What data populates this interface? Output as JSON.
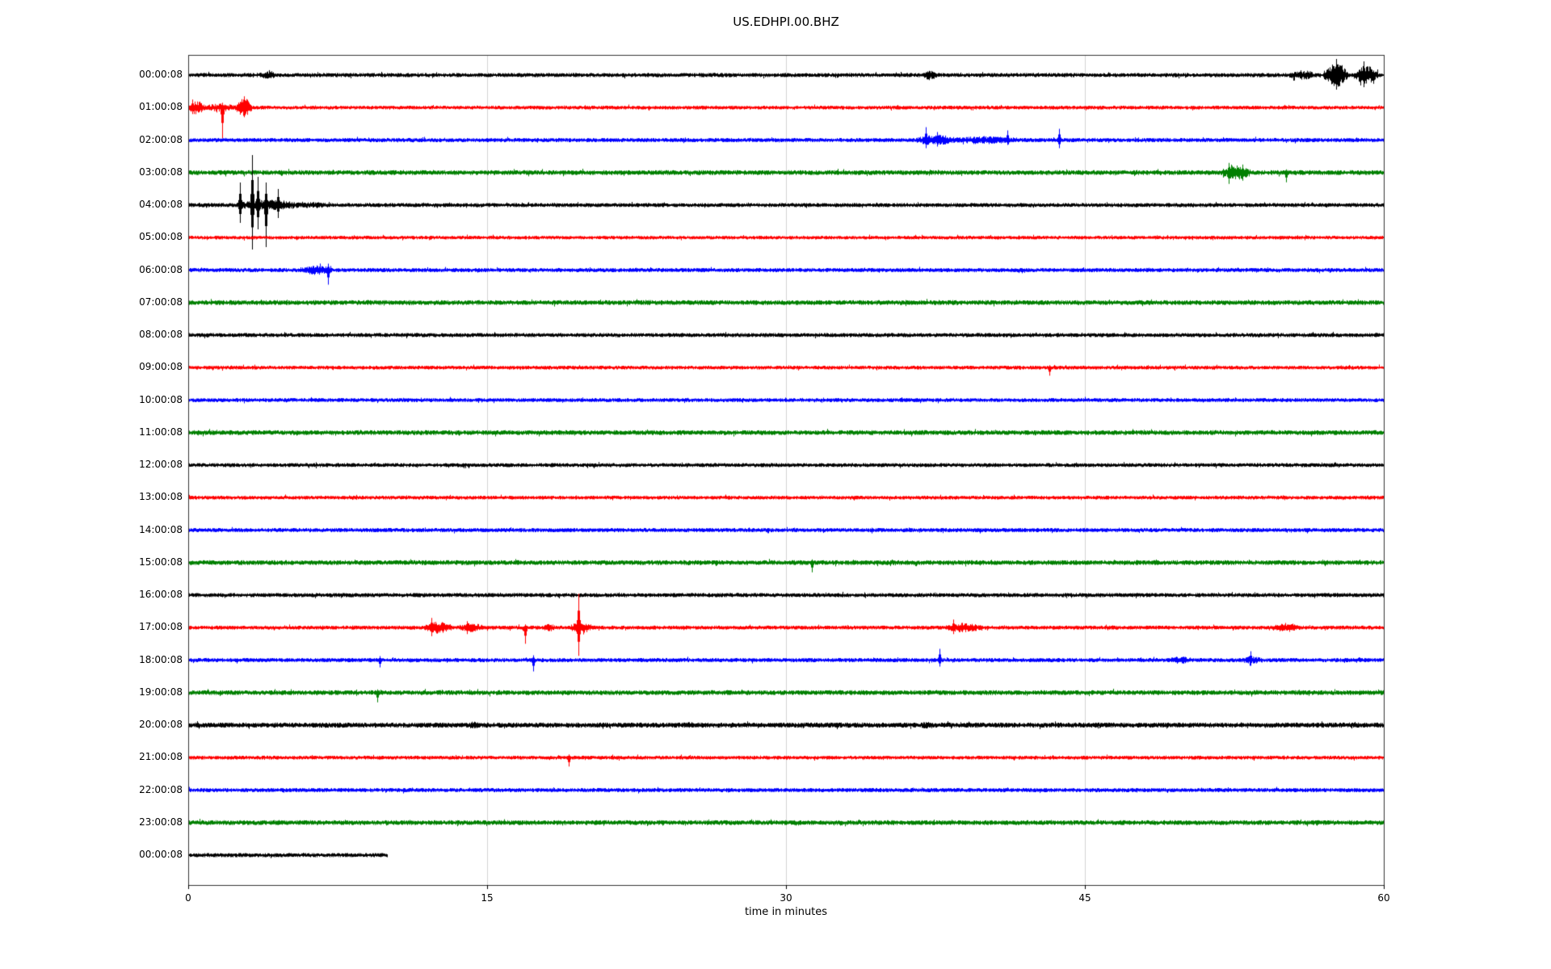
{
  "chart_data": {
    "type": "line",
    "subtype": "seismogram-dayplot",
    "title": "US.EDHPI.00.BHZ",
    "xlabel": "time in minutes",
    "xlim": [
      0,
      60
    ],
    "xticks": [
      0,
      15,
      30,
      45,
      60
    ],
    "grid_x": [
      15,
      30,
      45
    ],
    "grid_color": "#d3d3d3",
    "axis_color": "#333333",
    "trace_colors_cycle": [
      "#000000",
      "#ff0000",
      "#0000ff",
      "#008000"
    ],
    "rows": [
      {
        "label": "00:00:08",
        "color": "#000000",
        "noise": 2.6,
        "events": [
          {
            "type": "burst",
            "t0": 3.6,
            "t1": 4.4,
            "amp": 5
          },
          {
            "type": "burst",
            "t0": 36.8,
            "t1": 37.6,
            "amp": 6
          },
          {
            "type": "burst",
            "t0": 55.2,
            "t1": 56.6,
            "amp": 6
          },
          {
            "type": "burst",
            "t0": 57.0,
            "t1": 58.2,
            "amp": 15
          },
          {
            "type": "spike",
            "t": 57.6,
            "up": 20,
            "down": 18
          },
          {
            "type": "burst",
            "t0": 58.5,
            "t1": 59.7,
            "amp": 12
          },
          {
            "type": "spike",
            "t": 59.0,
            "up": 17,
            "down": 15
          }
        ]
      },
      {
        "label": "01:00:08",
        "color": "#ff0000",
        "noise": 2.4,
        "events": [
          {
            "type": "burst",
            "t0": 0.0,
            "t1": 0.8,
            "amp": 9
          },
          {
            "type": "spike",
            "t": 0.2,
            "up": 10,
            "down": 8
          },
          {
            "type": "burst",
            "t0": 0.8,
            "t1": 2.4,
            "amp": 5
          },
          {
            "type": "spike",
            "t": 1.7,
            "up": 6,
            "down": 38
          },
          {
            "type": "burst",
            "t0": 2.4,
            "t1": 3.2,
            "amp": 12
          },
          {
            "type": "spike",
            "t": 2.8,
            "up": 14,
            "down": 12
          }
        ]
      },
      {
        "label": "02:00:08",
        "color": "#0000ff",
        "noise": 2.6,
        "events": [
          {
            "type": "burst",
            "t0": 36.5,
            "t1": 38.5,
            "amp": 7
          },
          {
            "type": "spike",
            "t": 37.0,
            "up": 16,
            "down": 10
          },
          {
            "type": "spike",
            "t": 37.6,
            "up": 10,
            "down": 8
          },
          {
            "type": "burst",
            "t0": 38.5,
            "t1": 41.5,
            "amp": 5
          },
          {
            "type": "spike",
            "t": 41.1,
            "up": 12,
            "down": 6
          },
          {
            "type": "spike",
            "t": 43.7,
            "up": 14,
            "down": 10
          }
        ]
      },
      {
        "label": "03:00:08",
        "color": "#008000",
        "noise": 3.0,
        "events": [
          {
            "type": "burst",
            "t0": 51.9,
            "t1": 53.3,
            "amp": 9
          },
          {
            "type": "spike",
            "t": 52.2,
            "up": 12,
            "down": 14
          },
          {
            "type": "spike",
            "t": 52.9,
            "up": 10,
            "down": 10
          },
          {
            "type": "spike",
            "t": 55.1,
            "up": 4,
            "down": 12
          }
        ]
      },
      {
        "label": "04:00:08",
        "color": "#000000",
        "noise": 2.6,
        "events": [
          {
            "type": "burst",
            "t0": 2.4,
            "t1": 5.6,
            "amp": 7
          },
          {
            "type": "spike",
            "t": 2.6,
            "up": 28,
            "down": 22
          },
          {
            "type": "spike",
            "t": 3.2,
            "up": 62,
            "down": 55
          },
          {
            "type": "spike",
            "t": 3.5,
            "up": 35,
            "down": 30
          },
          {
            "type": "spike",
            "t": 3.9,
            "up": 28,
            "down": 52
          },
          {
            "type": "spike",
            "t": 4.5,
            "up": 20,
            "down": 16
          },
          {
            "type": "burst",
            "t0": 5.6,
            "t1": 7.0,
            "amp": 4
          }
        ]
      },
      {
        "label": "05:00:08",
        "color": "#ff0000",
        "noise": 2.3,
        "events": []
      },
      {
        "label": "06:00:08",
        "color": "#0000ff",
        "noise": 2.6,
        "events": [
          {
            "type": "burst",
            "t0": 5.6,
            "t1": 7.2,
            "amp": 6
          },
          {
            "type": "spike",
            "t": 7.0,
            "up": 8,
            "down": 18
          }
        ]
      },
      {
        "label": "07:00:08",
        "color": "#008000",
        "noise": 3.0,
        "events": []
      },
      {
        "label": "08:00:08",
        "color": "#000000",
        "noise": 2.6,
        "events": []
      },
      {
        "label": "09:00:08",
        "color": "#ff0000",
        "noise": 2.4,
        "events": [
          {
            "type": "spike",
            "t": 43.2,
            "up": 3,
            "down": 10
          }
        ]
      },
      {
        "label": "10:00:08",
        "color": "#0000ff",
        "noise": 2.5,
        "events": []
      },
      {
        "label": "11:00:08",
        "color": "#008000",
        "noise": 3.0,
        "events": []
      },
      {
        "label": "12:00:08",
        "color": "#000000",
        "noise": 2.5,
        "events": []
      },
      {
        "label": "13:00:08",
        "color": "#ff0000",
        "noise": 2.4,
        "events": []
      },
      {
        "label": "14:00:08",
        "color": "#0000ff",
        "noise": 2.6,
        "events": []
      },
      {
        "label": "15:00:08",
        "color": "#008000",
        "noise": 3.0,
        "events": [
          {
            "type": "spike",
            "t": 31.3,
            "up": 4,
            "down": 12
          }
        ]
      },
      {
        "label": "16:00:08",
        "color": "#000000",
        "noise": 2.6,
        "events": []
      },
      {
        "label": "17:00:08",
        "color": "#ff0000",
        "noise": 2.5,
        "events": [
          {
            "type": "burst",
            "t0": 11.8,
            "t1": 13.2,
            "amp": 8
          },
          {
            "type": "spike",
            "t": 12.2,
            "up": 12,
            "down": 10
          },
          {
            "type": "burst",
            "t0": 13.6,
            "t1": 14.8,
            "amp": 6
          },
          {
            "type": "spike",
            "t": 14.0,
            "up": 8,
            "down": 8
          },
          {
            "type": "spike",
            "t": 16.9,
            "up": 4,
            "down": 20
          },
          {
            "type": "burst",
            "t0": 17.8,
            "t1": 18.4,
            "amp": 5
          },
          {
            "type": "burst",
            "t0": 19.2,
            "t1": 20.2,
            "amp": 9
          },
          {
            "type": "spike",
            "t": 19.6,
            "up": 42,
            "down": 35
          },
          {
            "type": "burst",
            "t0": 38.0,
            "t1": 39.8,
            "amp": 6
          },
          {
            "type": "spike",
            "t": 38.4,
            "up": 10,
            "down": 8
          },
          {
            "type": "burst",
            "t0": 54.5,
            "t1": 55.8,
            "amp": 6
          }
        ]
      },
      {
        "label": "18:00:08",
        "color": "#0000ff",
        "noise": 2.6,
        "events": [
          {
            "type": "spike",
            "t": 9.6,
            "up": 5,
            "down": 9
          },
          {
            "type": "spike",
            "t": 17.3,
            "up": 6,
            "down": 14
          },
          {
            "type": "spike",
            "t": 37.7,
            "up": 14,
            "down": 8
          },
          {
            "type": "burst",
            "t0": 49.3,
            "t1": 50.3,
            "amp": 5
          },
          {
            "type": "burst",
            "t0": 52.9,
            "t1": 53.9,
            "amp": 5
          },
          {
            "type": "spike",
            "t": 53.3,
            "up": 11,
            "down": 7
          }
        ]
      },
      {
        "label": "19:00:08",
        "color": "#008000",
        "noise": 3.0,
        "events": [
          {
            "type": "spike",
            "t": 9.5,
            "up": 4,
            "down": 12
          }
        ]
      },
      {
        "label": "20:00:08",
        "color": "#000000",
        "noise": 3.2,
        "events": [
          {
            "type": "burst",
            "t0": 14.0,
            "t1": 14.6,
            "amp": 4.5
          },
          {
            "type": "burst",
            "t0": 24.8,
            "t1": 25.4,
            "amp": 4
          },
          {
            "type": "burst",
            "t0": 36.8,
            "t1": 37.4,
            "amp": 4.5
          }
        ]
      },
      {
        "label": "21:00:08",
        "color": "#ff0000",
        "noise": 2.4,
        "events": [
          {
            "type": "spike",
            "t": 19.1,
            "up": 4,
            "down": 11
          }
        ]
      },
      {
        "label": "22:00:08",
        "color": "#0000ff",
        "noise": 2.6,
        "events": []
      },
      {
        "label": "23:00:08",
        "color": "#008000",
        "noise": 3.0,
        "events": []
      },
      {
        "label": "00:00:08",
        "color": "#000000",
        "noise": 2.6,
        "t_end": 10.0,
        "events": []
      }
    ]
  }
}
